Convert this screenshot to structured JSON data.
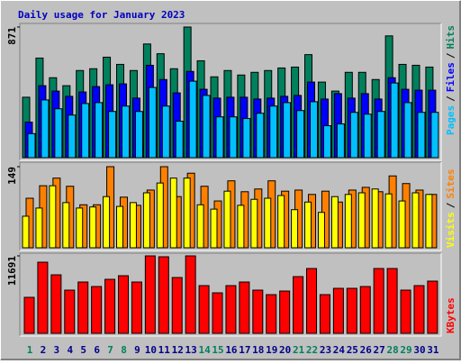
{
  "legend_separator": "/",
  "chart_data": [
    {
      "type": "bar",
      "title": "Daily usage for January 2023",
      "ylim": [
        0,
        871
      ],
      "yticks": [
        871
      ],
      "series": [
        {
          "name": "Hits",
          "color": "#00805c",
          "values": [
            403,
            664,
            533,
            480,
            581,
            593,
            670,
            622,
            581,
            758,
            693,
            593,
            871,
            646,
            539,
            581,
            551,
            569,
            581,
            598,
            604,
            687,
            504,
            444,
            569,
            569,
            521,
            812,
            622,
            616,
            604
          ]
        },
        {
          "name": "Files",
          "color": "#0000ff",
          "values": [
            237,
            480,
            444,
            409,
            438,
            474,
            486,
            492,
            397,
            616,
            521,
            432,
            575,
            456,
            397,
            403,
            403,
            391,
            397,
            409,
            415,
            504,
            391,
            427,
            397,
            427,
            391,
            533,
            456,
            450,
            450
          ]
        },
        {
          "name": "Pages",
          "color": "#00c0ff",
          "values": [
            160,
            385,
            326,
            284,
            361,
            367,
            308,
            344,
            308,
            468,
            344,
            243,
            510,
            415,
            272,
            272,
            261,
            296,
            344,
            367,
            314,
            373,
            213,
            225,
            302,
            290,
            308,
            498,
            367,
            302,
            302
          ]
        }
      ]
    },
    {
      "type": "bar",
      "ylim": [
        0,
        149
      ],
      "yticks": [
        149
      ],
      "series": [
        {
          "name": "Sites",
          "color": "#ff8000",
          "values": [
            91,
            114,
            128,
            113,
            79,
            79,
            149,
            93,
            78,
            106,
            149,
            94,
            137,
            113,
            86,
            123,
            103,
            108,
            123,
            104,
            106,
            98,
            104,
            84,
            106,
            111,
            103,
            132,
            118,
            106,
            98
          ]
        },
        {
          "name": "Visits",
          "color": "#ffff00",
          "values": [
            58,
            73,
            114,
            83,
            73,
            75,
            94,
            76,
            83,
            101,
            119,
            128,
            128,
            79,
            71,
            104,
            78,
            89,
            91,
            96,
            70,
            84,
            65,
            94,
            98,
            101,
            108,
            99,
            86,
            101,
            98
          ]
        }
      ]
    },
    {
      "type": "bar",
      "ylim": [
        0,
        11691
      ],
      "yticks": [
        11691
      ],
      "categories": [
        "1",
        "2",
        "3",
        "4",
        "5",
        "6",
        "7",
        "8",
        "9",
        "10",
        "11",
        "12",
        "13",
        "14",
        "15",
        "16",
        "17",
        "18",
        "19",
        "20",
        "21",
        "22",
        "23",
        "24",
        "25",
        "26",
        "27",
        "28",
        "29",
        "30",
        "31"
      ],
      "category_colors": [
        "#00805c",
        "#00008b",
        "#00008b",
        "#00008b",
        "#00008b",
        "#00008b",
        "#00805c",
        "#00805c",
        "#00008b",
        "#00008b",
        "#00008b",
        "#00008b",
        "#00008b",
        "#00805c",
        "#00805c",
        "#00008b",
        "#00008b",
        "#00008b",
        "#00008b",
        "#00008b",
        "#00805c",
        "#00805c",
        "#00008b",
        "#00008b",
        "#00008b",
        "#00008b",
        "#00008b",
        "#00805c",
        "#00805c",
        "#00008b",
        "#00008b"
      ],
      "series": [
        {
          "name": "KBytes",
          "color": "#ff0000",
          "values": [
            5437,
            10737,
            8834,
            6524,
            7747,
            7067,
            8154,
            8698,
            7747,
            11691,
            11555,
            8426,
            11691,
            7203,
            6116,
            7203,
            7747,
            6524,
            5844,
            6388,
            8562,
            9785,
            5844,
            6795,
            6795,
            7067,
            9785,
            9785,
            6524,
            7203,
            7883
          ]
        }
      ]
    }
  ]
}
